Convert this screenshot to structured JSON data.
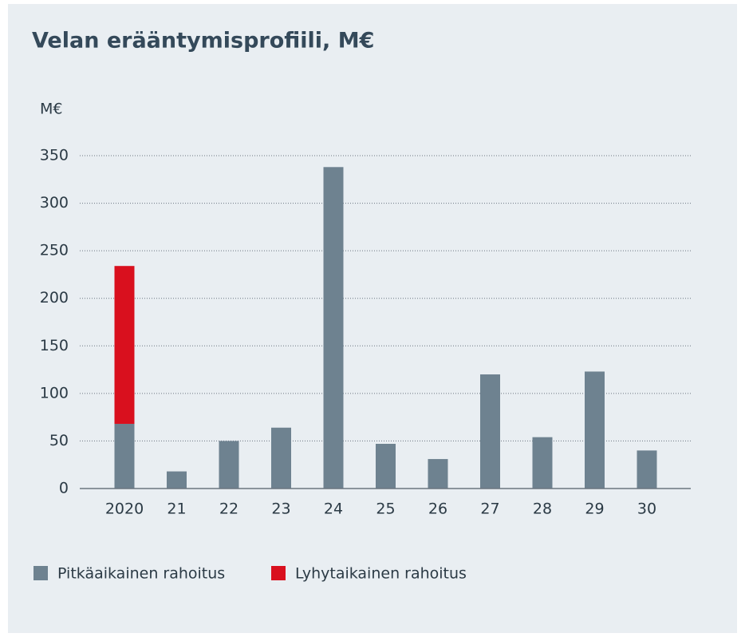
{
  "chart_data": {
    "type": "stacked_bar",
    "title": "Velan erääntymisprofiili, M€",
    "y_label": "M€",
    "categories": [
      "2020",
      "21",
      "22",
      "23",
      "24",
      "25",
      "26",
      "27",
      "28",
      "29",
      "30"
    ],
    "series": [
      {
        "name": "Pitkäaikainen rahoitus",
        "color": "#6e8290",
        "values": [
          68,
          18,
          50,
          64,
          338,
          47,
          31,
          120,
          54,
          123,
          40
        ]
      },
      {
        "name": "Lyhytaikainen rahoitus",
        "color": "#d9101e",
        "values": [
          166,
          null,
          null,
          null,
          null,
          null,
          null,
          null,
          null,
          null,
          null
        ]
      }
    ],
    "ylim": [
      0,
      350
    ],
    "yticks": [
      0,
      50,
      100,
      150,
      200,
      250,
      300,
      350
    ],
    "grid": true
  }
}
